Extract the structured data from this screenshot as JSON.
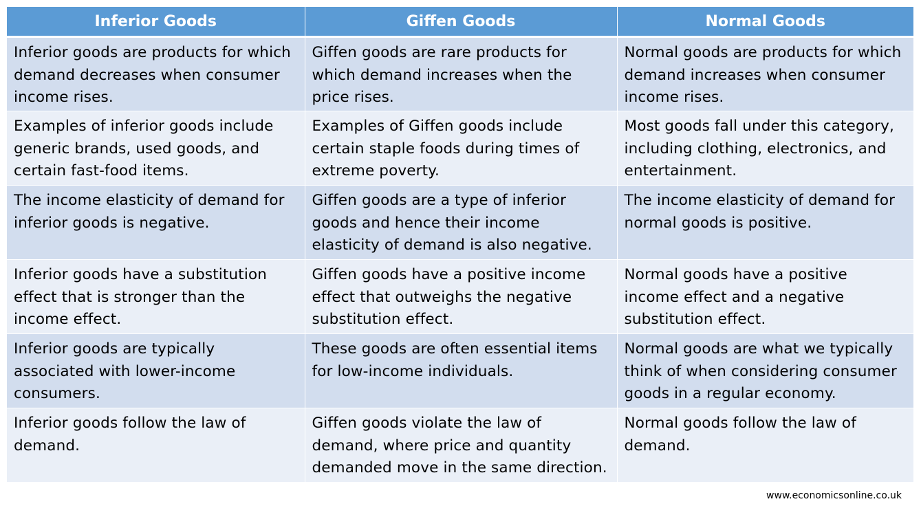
{
  "table": {
    "headers": [
      "Inferior Goods",
      "Giffen Goods",
      "Normal Goods"
    ],
    "rows": [
      [
        "Inferior goods are products for which demand decreases when consumer income rises.",
        "Giffen goods are rare products for which demand increases when the price rises.",
        "Normal goods are products for which demand increases when consumer income rises."
      ],
      [
        "Examples of inferior goods include generic brands, used goods, and certain fast-food items.",
        "Examples of Giffen goods include certain staple foods during times of extreme poverty.",
        "Most goods fall under this category, including clothing, electronics, and entertainment."
      ],
      [
        "The income elasticity of demand for inferior goods is negative.",
        "Giffen goods are a type of inferior goods and hence their income elasticity of demand is also negative.",
        "The income elasticity of demand for normal goods is positive."
      ],
      [
        "Inferior goods have a substitution effect that is stronger than the income effect.",
        "Giffen goods have a positive income effect that outweighs the negative substitution effect.",
        "Normal goods have a positive income effect and a negative substitution effect."
      ],
      [
        "Inferior goods are typically associated with lower-income consumers.",
        "These goods are often essential items for low-income individuals.",
        "Normal goods are what we typically think of when considering consumer goods in a regular economy."
      ],
      [
        "Inferior goods follow the law of demand.",
        "Giffen goods violate the law of demand, where price and quantity demanded move in the same direction.",
        "Normal goods follow the law of demand."
      ]
    ]
  },
  "source": "www.economicsonline.co.uk",
  "colors": {
    "header_bg": "#5b9bd5",
    "row_odd_bg": "#d2ddee",
    "row_even_bg": "#eaeff7"
  }
}
